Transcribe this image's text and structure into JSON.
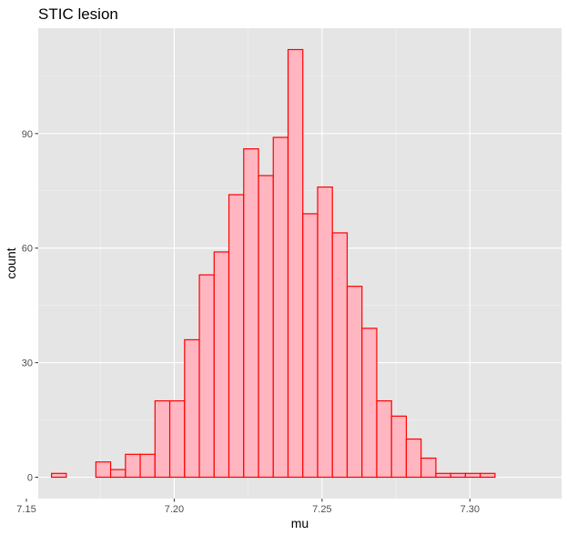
{
  "chart_data": {
    "type": "bar",
    "title": "STIC lesion",
    "xlabel": "mu",
    "ylabel": "count",
    "xlim": [
      7.154,
      7.331
    ],
    "ylim": [
      -5.6,
      117.6
    ],
    "x_ticks": [
      7.15,
      7.2,
      7.25,
      7.3
    ],
    "x_tick_labels": [
      "7.15",
      "7.20",
      "7.25",
      "7.30"
    ],
    "y_ticks": [
      0,
      30,
      60,
      90
    ],
    "y_tick_labels": [
      "0",
      "30",
      "60",
      "90"
    ],
    "grid": true,
    "bins": {
      "start": 7.1585,
      "width": 0.005,
      "counts": [
        1,
        0,
        0,
        4,
        2,
        6,
        6,
        20,
        20,
        36,
        53,
        59,
        74,
        86,
        79,
        89,
        112,
        69,
        76,
        64,
        50,
        39,
        20,
        16,
        10,
        5,
        1,
        1,
        1,
        1
      ]
    },
    "colors": {
      "fill": "#ffb6c1",
      "outline": "#ff0000",
      "panel": "#e5e5e5",
      "grid_major": "#ffffff",
      "grid_minor": "#f2f2f2"
    }
  }
}
